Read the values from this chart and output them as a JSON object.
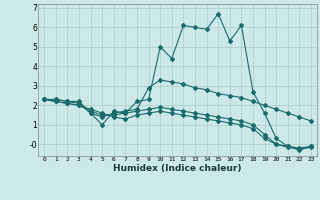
{
  "xlabel": "Humidex (Indice chaleur)",
  "background_color": "#cce8e8",
  "grid_color": "#aacccc",
  "line_color": "#1a6b6b",
  "xlim": [
    -0.5,
    23.5
  ],
  "ylim": [
    -0.6,
    7.2
  ],
  "xticks": [
    0,
    1,
    2,
    3,
    4,
    5,
    6,
    7,
    8,
    9,
    10,
    11,
    12,
    13,
    14,
    15,
    16,
    17,
    18,
    19,
    20,
    21,
    22,
    23
  ],
  "yticks": [
    0,
    1,
    2,
    3,
    4,
    5,
    6,
    7
  ],
  "ytick_labels": [
    "-0",
    "1",
    "2",
    "3",
    "4",
    "5",
    "6",
    "7"
  ],
  "series": [
    {
      "x": [
        0,
        1,
        2,
        3,
        4,
        5,
        6,
        7,
        8,
        9,
        10,
        11,
        12,
        13,
        14,
        15,
        16,
        17,
        18,
        19,
        20,
        21,
        22,
        23
      ],
      "y": [
        2.3,
        2.3,
        2.2,
        2.2,
        1.6,
        1.0,
        1.7,
        1.6,
        2.2,
        2.3,
        5.0,
        4.4,
        6.1,
        6.0,
        5.9,
        6.7,
        5.3,
        6.1,
        2.7,
        1.6,
        0.3,
        -0.1,
        -0.2,
        -0.1
      ]
    },
    {
      "x": [
        0,
        1,
        2,
        3,
        4,
        5,
        6,
        7,
        8,
        9,
        10,
        11,
        12,
        13,
        14,
        15,
        16,
        17,
        18,
        19,
        20,
        21,
        22,
        23
      ],
      "y": [
        2.3,
        2.3,
        2.2,
        2.1,
        1.6,
        1.4,
        1.6,
        1.7,
        1.8,
        2.9,
        3.3,
        3.2,
        3.1,
        2.9,
        2.8,
        2.6,
        2.5,
        2.4,
        2.2,
        2.0,
        1.8,
        1.6,
        1.4,
        1.2
      ]
    },
    {
      "x": [
        0,
        1,
        2,
        3,
        4,
        5,
        6,
        7,
        8,
        9,
        10,
        11,
        12,
        13,
        14,
        15,
        16,
        17,
        18,
        19,
        20,
        21,
        22,
        23
      ],
      "y": [
        2.3,
        2.2,
        2.1,
        2.0,
        1.7,
        1.5,
        1.5,
        1.6,
        1.7,
        1.8,
        1.9,
        1.8,
        1.7,
        1.6,
        1.5,
        1.4,
        1.3,
        1.2,
        1.0,
        0.5,
        0.0,
        -0.1,
        -0.3,
        -0.1
      ]
    },
    {
      "x": [
        0,
        1,
        2,
        3,
        4,
        5,
        6,
        7,
        8,
        9,
        10,
        11,
        12,
        13,
        14,
        15,
        16,
        17,
        18,
        19,
        20,
        21,
        22,
        23
      ],
      "y": [
        2.3,
        2.2,
        2.1,
        2.0,
        1.8,
        1.6,
        1.4,
        1.3,
        1.5,
        1.6,
        1.7,
        1.6,
        1.5,
        1.4,
        1.3,
        1.2,
        1.1,
        1.0,
        0.8,
        0.3,
        0.0,
        -0.15,
        -0.25,
        -0.15
      ]
    }
  ]
}
